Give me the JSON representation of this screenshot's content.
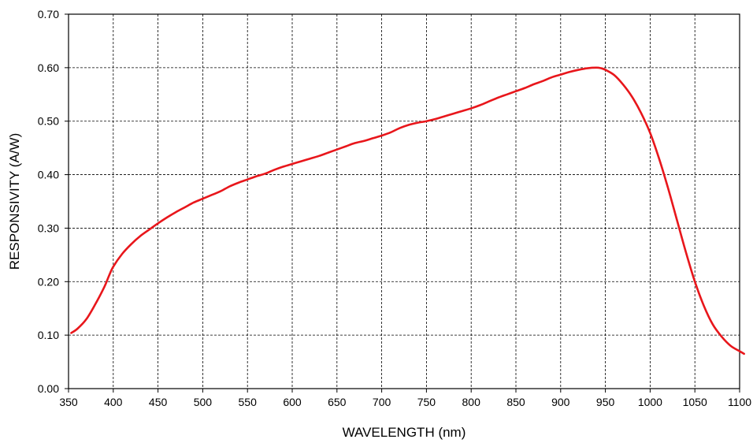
{
  "colors": {
    "curve": "#e8161b",
    "grid": "#000000",
    "background": "#ffffff"
  },
  "chart_data": {
    "type": "line",
    "title": "",
    "xlabel": "WAVELENGTH (nm)",
    "ylabel": "RESPONSIVITY (A/W)",
    "xlim": [
      350,
      1100
    ],
    "ylim": [
      0,
      0.7
    ],
    "grid": true,
    "grid_style": "dashed",
    "legend": "none",
    "x_ticks": [
      "350",
      "400",
      "450",
      "500",
      "550",
      "600",
      "650",
      "700",
      "750",
      "800",
      "850",
      "900",
      "950",
      "1000",
      "1050",
      "1100"
    ],
    "y_ticks": [
      "0.00",
      "0.10",
      "0.20",
      "0.30",
      "0.40",
      "0.50",
      "0.60",
      "0.70"
    ],
    "series": [
      {
        "x": [
          353,
          360,
          370,
          380,
          390,
          395,
          400,
          410,
          420,
          430,
          440,
          450,
          460,
          470,
          480,
          490,
          500,
          510,
          520,
          530,
          540,
          550,
          560,
          570,
          580,
          590,
          600,
          610,
          620,
          630,
          640,
          650,
          660,
          670,
          680,
          690,
          700,
          710,
          720,
          730,
          740,
          750,
          760,
          770,
          780,
          790,
          800,
          810,
          820,
          830,
          840,
          850,
          860,
          870,
          880,
          890,
          900,
          910,
          920,
          930,
          940,
          945,
          950,
          960,
          970,
          980,
          990,
          1000,
          1010,
          1020,
          1030,
          1040,
          1050,
          1060,
          1070,
          1080,
          1090,
          1100,
          1105
        ],
        "y": [
          0.104,
          0.112,
          0.13,
          0.158,
          0.19,
          0.21,
          0.228,
          0.252,
          0.27,
          0.285,
          0.297,
          0.309,
          0.32,
          0.33,
          0.339,
          0.348,
          0.355,
          0.362,
          0.369,
          0.378,
          0.385,
          0.391,
          0.397,
          0.402,
          0.409,
          0.415,
          0.42,
          0.425,
          0.43,
          0.435,
          0.441,
          0.447,
          0.453,
          0.459,
          0.463,
          0.468,
          0.473,
          0.479,
          0.487,
          0.493,
          0.497,
          0.5,
          0.504,
          0.509,
          0.514,
          0.519,
          0.524,
          0.53,
          0.537,
          0.544,
          0.55,
          0.556,
          0.562,
          0.569,
          0.575,
          0.582,
          0.587,
          0.592,
          0.596,
          0.599,
          0.6,
          0.599,
          0.596,
          0.586,
          0.568,
          0.545,
          0.515,
          0.478,
          0.43,
          0.375,
          0.315,
          0.255,
          0.2,
          0.155,
          0.12,
          0.097,
          0.08,
          0.07,
          0.065
        ]
      }
    ]
  }
}
